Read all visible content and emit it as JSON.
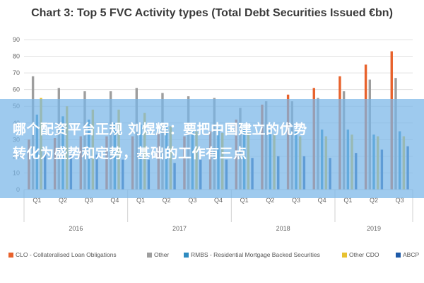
{
  "chart_data": {
    "type": "bar",
    "title": "Chart 3: Top 5 FVC Activity types (Total Debt Securities Issued €bn)",
    "xlabel": "",
    "ylabel": "",
    "ylim": [
      0,
      90
    ],
    "yticks": [
      0,
      10,
      20,
      30,
      40,
      50,
      60,
      70,
      80,
      90
    ],
    "grid": true,
    "legend_position": "bottom",
    "categories": [
      "Q1",
      "Q2",
      "Q3",
      "Q4",
      "Q1",
      "Q2",
      "Q3",
      "Q4",
      "Q1",
      "Q2",
      "Q3",
      "Q4",
      "Q1",
      "Q2",
      "Q3"
    ],
    "category_groups": [
      {
        "label": "2016",
        "count": 4
      },
      {
        "label": "2017",
        "count": 4
      },
      {
        "label": "2018",
        "count": 4
      },
      {
        "label": "2019",
        "count": 3
      }
    ],
    "series": [
      {
        "name": "CLO - Collateralised Loan Obligations",
        "color": "#E8622C",
        "values": [
          30,
          31,
          32,
          32,
          32,
          34,
          32,
          35,
          42,
          51,
          57,
          61,
          68,
          75,
          83
        ]
      },
      {
        "name": "Other",
        "color": "#9E9E9E",
        "values": [
          68,
          61,
          59,
          59,
          61,
          58,
          56,
          55,
          49,
          53,
          53,
          55,
          59,
          66,
          67
        ]
      },
      {
        "name": "RMBS - Residential Mortgage Backed Securities",
        "color": "#2E8BC0",
        "values": [
          45,
          44,
          42,
          40,
          39,
          38,
          37,
          37,
          37,
          37,
          37,
          36,
          36,
          33,
          35
        ]
      },
      {
        "name": "Other CDO",
        "color": "#E8C230",
        "values": [
          55,
          50,
          48,
          48,
          46,
          38,
          35,
          34,
          34,
          33,
          32,
          32,
          33,
          32,
          32
        ]
      },
      {
        "name": "ABCP",
        "color": "#1E5AA8",
        "values": [
          22,
          23,
          21,
          18,
          18,
          16,
          18,
          18,
          19,
          20,
          20,
          19,
          22,
          24,
          26
        ]
      }
    ]
  },
  "overlay": {
    "line1": "哪个配资平台正规 刘煜辉：要把中国建立的优势",
    "line2": "转化为盛势和定势，基础的工作有三点"
  }
}
